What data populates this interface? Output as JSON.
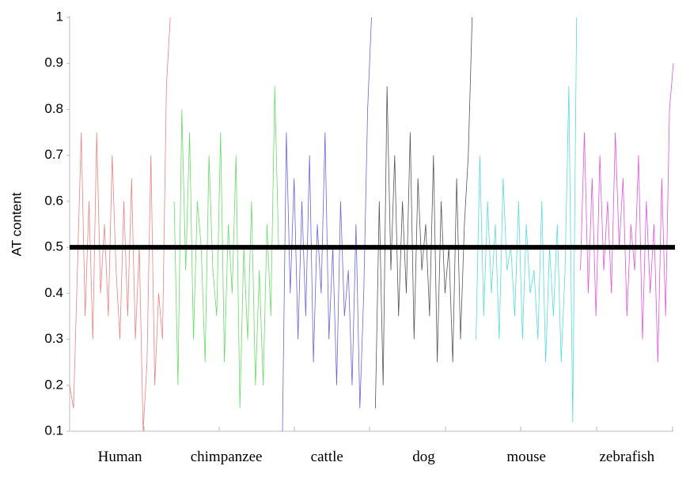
{
  "chart_data": {
    "type": "line",
    "ylabel": "AT content",
    "ylim": [
      0.1,
      1
    ],
    "yticks": [
      0.1,
      0.2,
      0.3,
      0.4,
      0.5,
      0.6,
      0.7,
      0.8,
      0.9,
      1
    ],
    "reference_line": 0.5,
    "reference_color": "#000000",
    "series": [
      {
        "name": "Human",
        "color": "#f08080",
        "values": [
          0.2,
          0.15,
          0.45,
          0.75,
          0.35,
          0.6,
          0.3,
          0.75,
          0.4,
          0.55,
          0.35,
          0.7,
          0.45,
          0.3,
          0.6,
          0.35,
          0.65,
          0.3,
          0.5,
          0.1,
          0.25,
          0.7,
          0.2,
          0.4,
          0.3,
          0.85,
          1.0
        ]
      },
      {
        "name": "chimpanzee",
        "color": "#66dd66",
        "values": [
          0.6,
          0.2,
          0.8,
          0.45,
          0.75,
          0.3,
          0.6,
          0.5,
          0.25,
          0.7,
          0.45,
          0.35,
          0.75,
          0.25,
          0.55,
          0.4,
          0.7,
          0.15,
          0.5,
          0.3,
          0.6,
          0.2,
          0.45,
          0.2,
          0.55,
          0.35,
          0.85,
          0.5
        ]
      },
      {
        "name": "cattle",
        "color": "#6666dd",
        "values": [
          0.1,
          0.75,
          0.4,
          0.65,
          0.3,
          0.6,
          0.35,
          0.7,
          0.25,
          0.55,
          0.4,
          0.75,
          0.3,
          0.5,
          0.2,
          0.6,
          0.35,
          0.45,
          0.2,
          0.55,
          0.15,
          0.4,
          0.8,
          1.0
        ]
      },
      {
        "name": "dog",
        "color": "#555555",
        "values": [
          0.15,
          0.6,
          0.2,
          0.85,
          0.45,
          0.7,
          0.35,
          0.6,
          0.4,
          0.75,
          0.3,
          0.65,
          0.45,
          0.55,
          0.35,
          0.7,
          0.25,
          0.6,
          0.4,
          0.5,
          0.25,
          0.65,
          0.3,
          0.55,
          0.7,
          1.0
        ]
      },
      {
        "name": "mouse",
        "color": "#55dddd",
        "values": [
          0.3,
          0.7,
          0.35,
          0.6,
          0.4,
          0.55,
          0.3,
          0.65,
          0.45,
          0.5,
          0.35,
          0.6,
          0.3,
          0.55,
          0.4,
          0.45,
          0.3,
          0.6,
          0.25,
          0.5,
          0.35,
          0.55,
          0.25,
          0.45,
          0.85,
          0.12,
          1.0
        ]
      },
      {
        "name": "zebrafish",
        "color": "#e055e0",
        "values": [
          0.45,
          0.75,
          0.4,
          0.65,
          0.35,
          0.7,
          0.45,
          0.6,
          0.4,
          0.75,
          0.5,
          0.65,
          0.35,
          0.55,
          0.45,
          0.7,
          0.3,
          0.6,
          0.4,
          0.55,
          0.25,
          0.65,
          0.35,
          0.8,
          0.9
        ]
      }
    ]
  }
}
